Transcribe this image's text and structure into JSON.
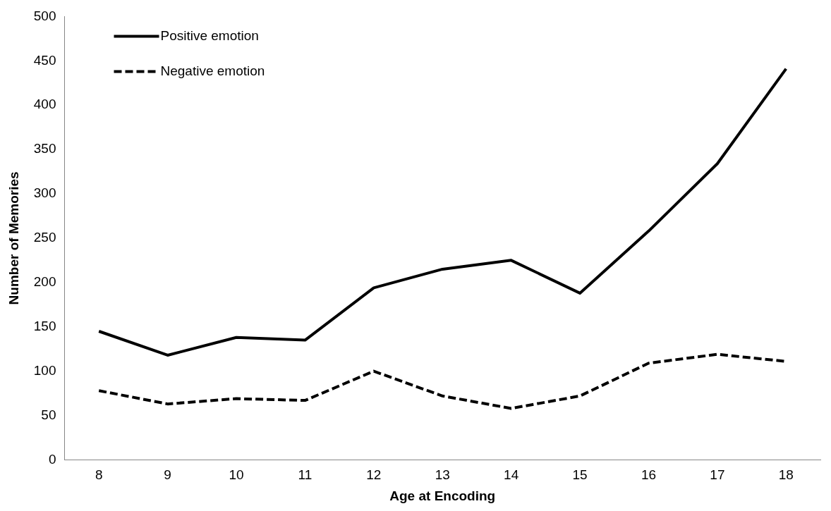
{
  "chart_data": {
    "type": "line",
    "xlabel": "Age at Encoding",
    "ylabel": "Number of Memories",
    "categories": [
      "8",
      "9",
      "10",
      "11",
      "12",
      "13",
      "14",
      "15",
      "16",
      "17",
      "18"
    ],
    "series": [
      {
        "name": "Positive emotion",
        "color": "#000000",
        "line_style": "solid",
        "values": [
          145,
          118,
          138,
          135,
          194,
          215,
          225,
          188,
          258,
          334,
          441
        ]
      },
      {
        "name": "Negative emotion",
        "color": "#000000",
        "line_style": "dashed",
        "values": [
          78,
          63,
          69,
          67,
          100,
          72,
          58,
          72,
          109,
          119,
          111
        ]
      }
    ],
    "ylim": [
      0,
      500
    ],
    "yticks": [
      0,
      50,
      100,
      150,
      200,
      250,
      300,
      350,
      400,
      450,
      500
    ],
    "grid": false,
    "legend": "top left",
    "marker": "none"
  }
}
